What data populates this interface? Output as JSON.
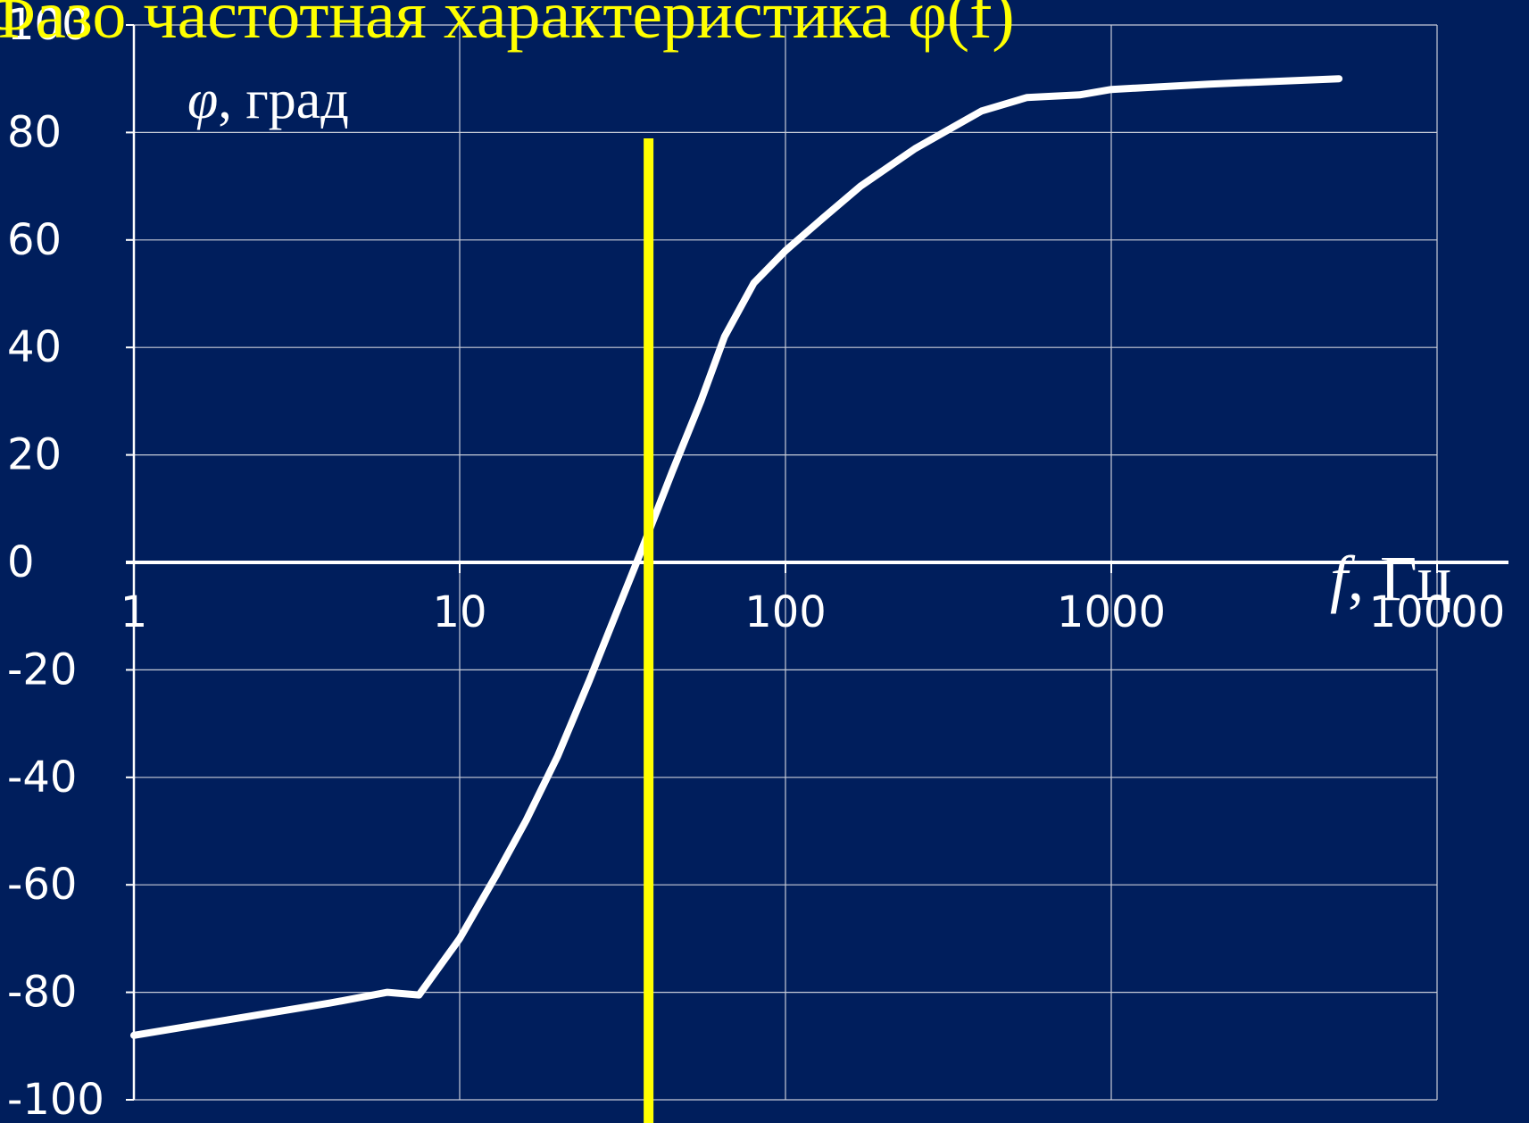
{
  "chart_data": {
    "type": "line",
    "title": "Фазо   частотная   характеристика  φ(f)",
    "ylabel_symbol": "φ",
    "ylabel_unit": ", град",
    "xlabel_symbol": "f",
    "xlabel_unit": ", Гц",
    "x_scale": "log",
    "xlim": [
      1,
      10000
    ],
    "ylim": [
      -100,
      100
    ],
    "x_ticks": [
      "1",
      "10",
      "100",
      "1000",
      "10000"
    ],
    "y_ticks": [
      "100",
      "80",
      "60",
      "40",
      "20",
      "0",
      "-20",
      "-40",
      "-60",
      "-80",
      "-100"
    ],
    "grid": true,
    "series": [
      {
        "x": [
          1,
          2,
          4,
          6,
          7.5,
          10,
          13,
          16,
          20,
          25,
          30,
          36,
          45,
          55,
          65,
          80,
          100,
          130,
          170,
          250,
          400,
          550,
          800,
          1000,
          2000,
          5000
        ],
        "values": [
          -88,
          -85,
          -82,
          -80,
          -80.5,
          -70,
          -58,
          -48,
          -36,
          -22,
          -10,
          2,
          17,
          30,
          42,
          52,
          58,
          64,
          70,
          77,
          84,
          86.5,
          87,
          88,
          89,
          90
        ]
      }
    ],
    "marker_line_x": 38
  },
  "colors": {
    "background": "#001e5c",
    "grid": "#c8ccd8",
    "curve": "#ffffff",
    "marker": "#ffff00",
    "title": "#ffff00"
  }
}
